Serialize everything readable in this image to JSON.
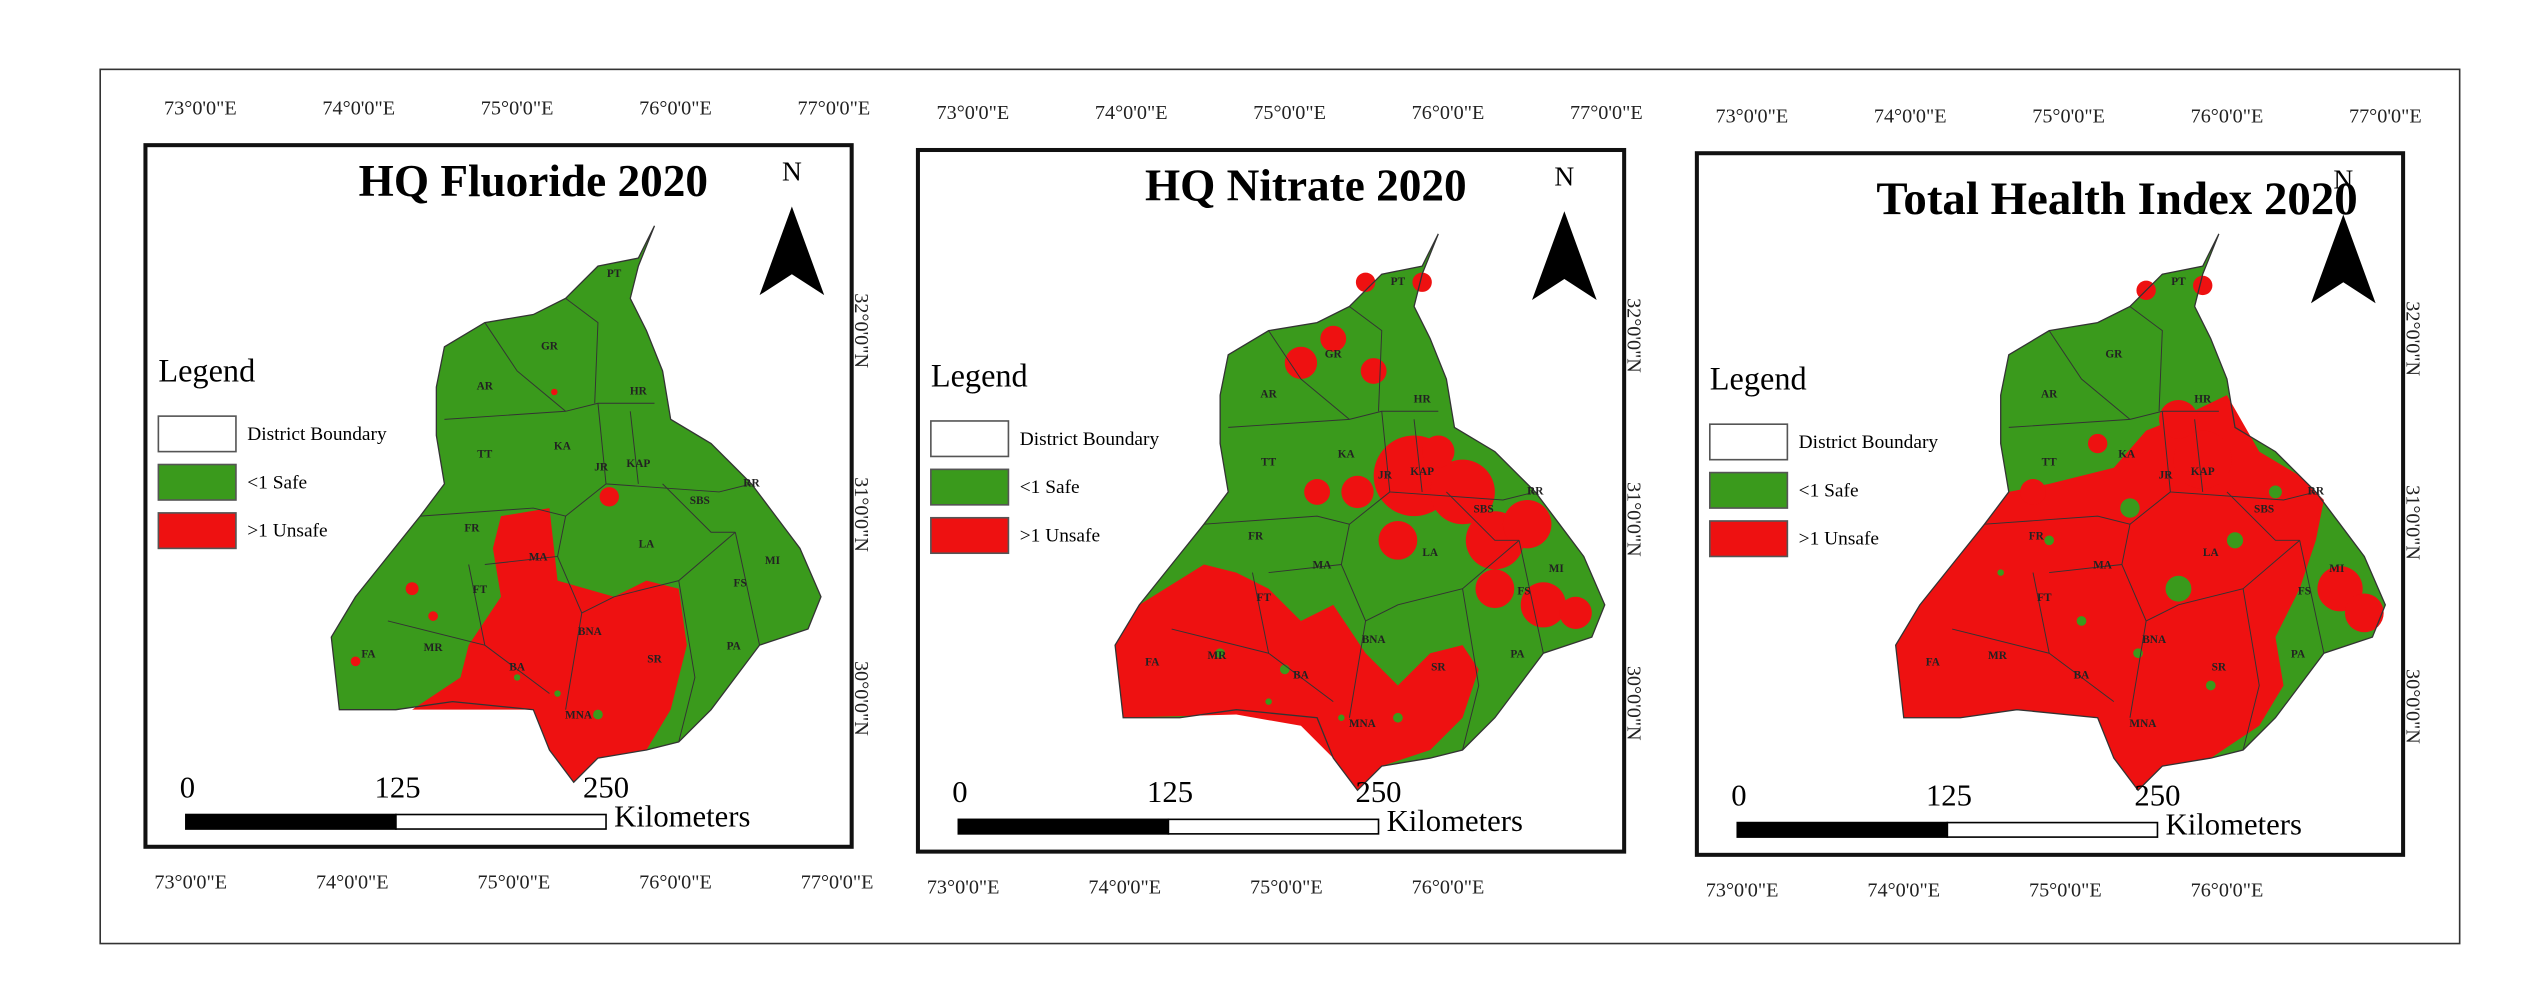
{
  "panels": [
    {
      "title": "HQ Fluoride 2020",
      "north": "N",
      "legend_title": "Legend",
      "legend_items": [
        "District Boundary",
        "<1 Safe",
        ">1 Unsafe"
      ],
      "scale_labels": [
        "0",
        "125",
        "250"
      ],
      "scale_unit": "Kilometers",
      "top_labels": [
        "73°0'0\"E",
        "74°0'0\"E",
        "75°0'0\"E",
        "76°0'0\"E",
        "77°0'0\"E"
      ],
      "bottom_labels": [
        "73°0'0\"E",
        "74°0'0\"E",
        "75°0'0\"E",
        "76°0'0\"E",
        "77°0'0\"E"
      ],
      "right_labels": [
        "32°0'0\"N",
        "31°0'0\"N",
        "30°0'0\"N"
      ]
    },
    {
      "title": "HQ Nitrate 2020",
      "north": "N",
      "legend_title": "Legend",
      "legend_items": [
        "District Boundary",
        "<1 Safe",
        ">1 Unsafe"
      ],
      "scale_labels": [
        "0",
        "125",
        "250"
      ],
      "scale_unit": "Kilometers",
      "top_labels": [
        "73°0'0\"E",
        "74°0'0\"E",
        "75°0'0\"E",
        "76°0'0\"E",
        "77°0'0\"E"
      ],
      "bottom_labels": [
        "73°0'0\"E",
        "74°0'0\"E",
        "75°0'0\"E",
        "76°0'0\"E"
      ],
      "right_labels": [
        "32°0'0\"N",
        "31°0'0\"N",
        "30°0'0\"N"
      ]
    },
    {
      "title": "Total Health Index 2020",
      "north": "N",
      "legend_title": "Legend",
      "legend_items": [
        "District Boundary",
        "<1 Safe",
        ">1 Unsafe"
      ],
      "scale_labels": [
        "0",
        "125",
        "250"
      ],
      "scale_unit": "Kilometers",
      "top_labels": [
        "73°0'0\"E",
        "74°0'0\"E",
        "75°0'0\"E",
        "76°0'0\"E",
        "77°0'0\"E"
      ],
      "bottom_labels": [
        "73°0'0\"E",
        "74°0'0\"E",
        "75°0'0\"E",
        "76°0'0\"E"
      ],
      "right_labels": [
        "32°0'0\"N",
        "31°0'0\"N",
        "30°0'0\"N"
      ]
    }
  ],
  "districts": [
    "PT",
    "GR",
    "AR",
    "HR",
    "TT",
    "KA",
    "JR",
    "KAP",
    "SBS",
    "RR",
    "FR",
    "MA",
    "LA",
    "MI",
    "FT",
    "FS",
    "MR",
    "BA",
    "BNA",
    "SR",
    "PA",
    "FA",
    "MNA"
  ]
}
